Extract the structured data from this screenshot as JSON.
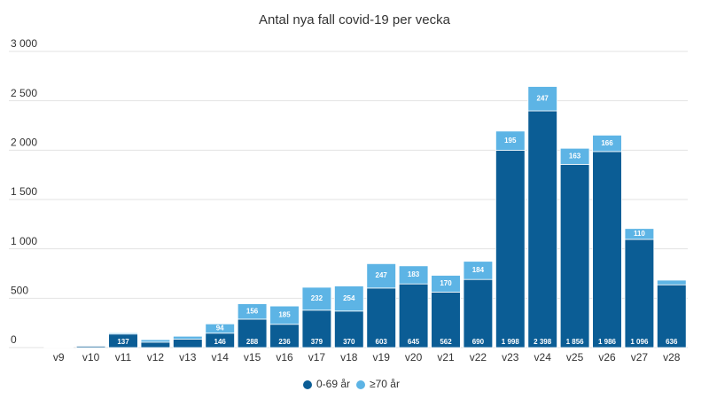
{
  "chart_data": {
    "type": "stacked-bar",
    "title": "Antal nya fall covid-19 per vecka",
    "categories": [
      "v9",
      "v10",
      "v11",
      "v12",
      "v13",
      "v14",
      "v15",
      "v16",
      "v17",
      "v18",
      "v19",
      "v20",
      "v21",
      "v22",
      "v23",
      "v24",
      "v25",
      "v26",
      "v27",
      "v28"
    ],
    "series": [
      {
        "name": "0-69 år",
        "color": "#0b5d95",
        "values": [
          6,
          15,
          137,
          55,
          85,
          146,
          288,
          236,
          379,
          370,
          603,
          645,
          562,
          690,
          1998,
          2398,
          1856,
          1986,
          1096,
          636
        ],
        "value_labels": [
          null,
          null,
          "137",
          null,
          null,
          "146",
          "288",
          "236",
          "379",
          "370",
          "603",
          "645",
          "562",
          "690",
          "1 998",
          "2 398",
          "1 856",
          "1 986",
          "1 096",
          "636"
        ]
      },
      {
        "name": "≥70 år",
        "color": "#5db4e5",
        "values": [
          3,
          5,
          12,
          25,
          30,
          94,
          156,
          185,
          232,
          254,
          247,
          183,
          170,
          184,
          195,
          247,
          163,
          166,
          110,
          47
        ],
        "value_labels": [
          null,
          null,
          null,
          null,
          null,
          "94",
          "156",
          "185",
          "232",
          "254",
          "247",
          "183",
          "170",
          "184",
          "195",
          "247",
          "163",
          "166",
          "110",
          null
        ]
      }
    ],
    "ylim": [
      0,
      3000
    ],
    "yticks": [
      0,
      500,
      {
        "value": 1000,
        "label": "1 000"
      },
      {
        "value": 1500,
        "label": "1 500"
      },
      {
        "value": 2000,
        "label": "2 000"
      },
      {
        "value": 2500,
        "label": "2 500"
      },
      {
        "value": 3000,
        "label": "3 000"
      }
    ],
    "grid": true,
    "legend": "bottom"
  }
}
